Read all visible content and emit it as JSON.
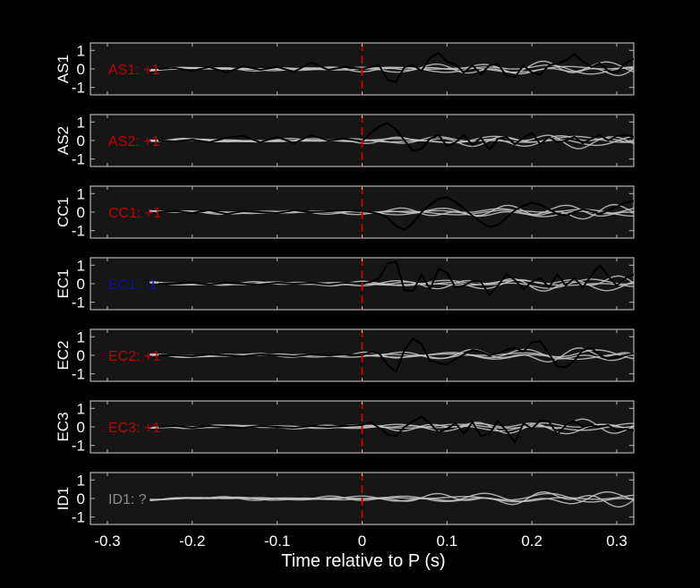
{
  "chart_data": {
    "type": "line",
    "xlabel": "Time relative to P (s)",
    "xlim": [
      -0.32,
      0.32
    ],
    "xticks": [
      -0.3,
      -0.2,
      -0.1,
      0,
      0.1,
      0.2,
      0.3
    ],
    "xtick_labels": [
      "-0.3",
      "-0.2",
      "-0.1",
      "0",
      "0.1",
      "0.2",
      "0.3"
    ],
    "ylim": [
      -1.4,
      1.4
    ],
    "yticks": [
      -1,
      0,
      1
    ],
    "ytick_labels": [
      "-1",
      "0",
      "1"
    ],
    "marker_time": 0,
    "marker_color": "#cc0000",
    "grey_trace_color": "#c8c8c8",
    "station_trace_color": "#000000",
    "panels": [
      {
        "station": "AS1",
        "label": "AS1: +1",
        "label_color": "#c00000",
        "traces": [
          {
            "name": "AS1",
            "x": [
              -0.24,
              -0.22,
              -0.2,
              -0.18,
              -0.16,
              -0.14,
              -0.12,
              -0.1,
              -0.08,
              -0.06,
              -0.04,
              -0.02,
              0,
              0.01,
              0.02,
              0.03,
              0.04,
              0.05,
              0.06,
              0.07,
              0.08,
              0.09,
              0.1,
              0.11,
              0.12,
              0.13,
              0.14,
              0.15,
              0.16,
              0.17,
              0.18,
              0.19,
              0.2,
              0.21,
              0.22,
              0.23,
              0.24,
              0.25,
              0.26,
              0.27,
              0.28,
              0.29,
              0.3,
              0.31,
              0.32
            ],
            "y": [
              0.0,
              0.05,
              -0.1,
              0.1,
              -0.2,
              0.15,
              -0.05,
              0.1,
              -0.15,
              0.35,
              -0.05,
              0.1,
              0.0,
              0.1,
              0.2,
              -0.6,
              -0.7,
              0.1,
              0.2,
              -0.1,
              0.6,
              0.85,
              0.4,
              0.25,
              -0.2,
              0.2,
              -0.3,
              0.2,
              0.25,
              -0.35,
              -0.45,
              0.2,
              -0.2,
              -0.3,
              0.2,
              0.3,
              0.45,
              0.8,
              0.4,
              0.1,
              0.3,
              -0.1,
              -0.2,
              0.3,
              0.55
            ]
          }
        ]
      },
      {
        "station": "AS2",
        "label": "AS2: +1",
        "label_color": "#c00000",
        "traces": [
          {
            "name": "AS2",
            "x": [
              -0.24,
              -0.22,
              -0.2,
              -0.18,
              -0.16,
              -0.14,
              -0.12,
              -0.1,
              -0.08,
              -0.06,
              -0.04,
              -0.02,
              0,
              0.01,
              0.02,
              0.03,
              0.04,
              0.05,
              0.06,
              0.07,
              0.08,
              0.09,
              0.1,
              0.11,
              0.12,
              0.13,
              0.14,
              0.15,
              0.16,
              0.17,
              0.18,
              0.19,
              0.2,
              0.21,
              0.22,
              0.23,
              0.24,
              0.25,
              0.26,
              0.27,
              0.28,
              0.29,
              0.3,
              0.31,
              0.32
            ],
            "y": [
              0.0,
              -0.05,
              0.05,
              -0.1,
              0.15,
              0.25,
              -0.1,
              0.2,
              -0.15,
              0.3,
              0.0,
              0.1,
              -0.05,
              0.4,
              0.75,
              0.95,
              0.6,
              0.0,
              -0.55,
              -0.45,
              0.1,
              0.3,
              -0.3,
              -0.1,
              0.3,
              -0.25,
              0.15,
              -0.5,
              0.1,
              0.2,
              -0.2,
              0.15,
              0.4,
              -0.2,
              0.2,
              -0.1,
              0.0,
              0.2,
              -0.15,
              0.1,
              0.3,
              0.0,
              0.25,
              0.3,
              0.2
            ]
          }
        ]
      },
      {
        "station": "CC1",
        "label": "CC1: +1",
        "label_color": "#c00000",
        "traces": [
          {
            "name": "CC1",
            "x": [
              -0.24,
              -0.22,
              -0.2,
              -0.18,
              -0.16,
              -0.14,
              -0.12,
              -0.1,
              -0.08,
              -0.06,
              -0.04,
              -0.02,
              0,
              0.01,
              0.02,
              0.03,
              0.04,
              0.05,
              0.06,
              0.07,
              0.08,
              0.09,
              0.1,
              0.11,
              0.12,
              0.13,
              0.14,
              0.15,
              0.16,
              0.17,
              0.18,
              0.19,
              0.2,
              0.21,
              0.22,
              0.23,
              0.24,
              0.25,
              0.26,
              0.27,
              0.28,
              0.29,
              0.3,
              0.31,
              0.32
            ],
            "y": [
              0.0,
              0.05,
              -0.05,
              0.1,
              -0.1,
              0.05,
              0.0,
              -0.05,
              0.1,
              0.0,
              0.05,
              0.1,
              0.05,
              0.0,
              -0.1,
              -0.3,
              -0.75,
              -0.95,
              -0.6,
              0.0,
              0.4,
              0.7,
              0.8,
              0.55,
              0.2,
              -0.2,
              -0.55,
              -0.8,
              -0.7,
              -0.3,
              0.1,
              0.35,
              0.5,
              0.4,
              0.15,
              -0.1,
              -0.2,
              0.0,
              0.15,
              0.05,
              -0.1,
              0.1,
              0.3,
              0.5,
              0.6
            ]
          }
        ]
      },
      {
        "station": "EC1",
        "label": "EC1: -1",
        "label_color": "#1010a0",
        "traces": [
          {
            "name": "EC1",
            "x": [
              -0.24,
              -0.22,
              -0.2,
              -0.18,
              -0.16,
              -0.14,
              -0.12,
              -0.1,
              -0.08,
              -0.06,
              -0.04,
              -0.02,
              0,
              0.01,
              0.02,
              0.03,
              0.04,
              0.05,
              0.06,
              0.07,
              0.08,
              0.09,
              0.1,
              0.11,
              0.12,
              0.13,
              0.14,
              0.15,
              0.16,
              0.17,
              0.18,
              0.19,
              0.2,
              0.21,
              0.22,
              0.23,
              0.24,
              0.25,
              0.26,
              0.27,
              0.28,
              0.29,
              0.3,
              0.31,
              0.32
            ],
            "y": [
              0.0,
              0.0,
              0.05,
              -0.05,
              0.05,
              0.0,
              -0.05,
              0.05,
              0.0,
              0.05,
              -0.05,
              0.05,
              0.0,
              0.1,
              0.3,
              1.1,
              1.2,
              -0.35,
              -0.4,
              0.5,
              -0.3,
              0.8,
              0.6,
              -0.2,
              -0.1,
              0.15,
              0.1,
              -0.6,
              -0.1,
              0.5,
              0.2,
              -0.3,
              0.1,
              0.3,
              -0.2,
              0.5,
              -0.1,
              0.3,
              -0.2,
              0.45,
              1.0,
              0.4,
              -0.1,
              0.3,
              0.5
            ]
          }
        ]
      },
      {
        "station": "EC2",
        "label": "EC2: +1",
        "label_color": "#c00000",
        "traces": [
          {
            "name": "EC2",
            "x": [
              -0.24,
              -0.22,
              -0.2,
              -0.18,
              -0.16,
              -0.14,
              -0.12,
              -0.1,
              -0.08,
              -0.06,
              -0.04,
              -0.02,
              0,
              0.01,
              0.02,
              0.03,
              0.04,
              0.05,
              0.06,
              0.07,
              0.08,
              0.09,
              0.1,
              0.11,
              0.12,
              0.13,
              0.14,
              0.15,
              0.16,
              0.17,
              0.18,
              0.19,
              0.2,
              0.21,
              0.22,
              0.23,
              0.24,
              0.25,
              0.26,
              0.27,
              0.28,
              0.29,
              0.3,
              0.31,
              0.32
            ],
            "y": [
              0.0,
              0.0,
              -0.05,
              0.05,
              0.0,
              -0.05,
              0.05,
              0.0,
              -0.05,
              0.05,
              0.0,
              0.05,
              0.0,
              0.2,
              0.1,
              -0.5,
              -0.9,
              0.3,
              0.9,
              0.6,
              -0.3,
              -0.4,
              -0.5,
              -0.2,
              0.05,
              0.3,
              0.2,
              0.0,
              0.1,
              0.3,
              0.4,
              0.2,
              0.7,
              0.75,
              0.1,
              -0.6,
              -0.65,
              -0.3,
              0.3,
              0.4,
              0.0,
              -0.2,
              -0.1,
              0.0,
              0.1
            ]
          }
        ]
      },
      {
        "station": "EC3",
        "label": "EC3: +1",
        "label_color": "#c00000",
        "traces": [
          {
            "name": "EC3",
            "x": [
              -0.24,
              -0.22,
              -0.2,
              -0.18,
              -0.16,
              -0.14,
              -0.12,
              -0.1,
              -0.08,
              -0.06,
              -0.04,
              -0.02,
              0,
              0.01,
              0.02,
              0.03,
              0.04,
              0.05,
              0.06,
              0.07,
              0.08,
              0.09,
              0.1,
              0.11,
              0.12,
              0.13,
              0.14,
              0.15,
              0.16,
              0.17,
              0.18,
              0.19,
              0.2,
              0.21,
              0.22,
              0.23,
              0.24,
              0.25,
              0.26,
              0.27,
              0.28,
              0.29,
              0.3,
              0.31,
              0.32
            ],
            "y": [
              0.0,
              0.05,
              -0.05,
              0.05,
              0.0,
              -0.05,
              0.05,
              0.0,
              -0.05,
              0.05,
              0.0,
              0.05,
              0.1,
              0.25,
              -0.05,
              -0.4,
              -0.5,
              0.0,
              0.3,
              0.55,
              0.2,
              -0.3,
              -0.1,
              0.2,
              -0.35,
              0.25,
              -0.5,
              -0.35,
              0.3,
              -0.2,
              -0.85,
              0.2,
              -0.1,
              0.35,
              0.3,
              -0.4,
              0.1,
              0.3,
              0.0,
              0.1,
              0.0,
              0.1,
              -0.2,
              -0.1,
              -0.2
            ]
          }
        ]
      },
      {
        "station": "ID1",
        "label": "ID1: ?",
        "label_color": "#8c8c8c",
        "traces": []
      }
    ]
  }
}
